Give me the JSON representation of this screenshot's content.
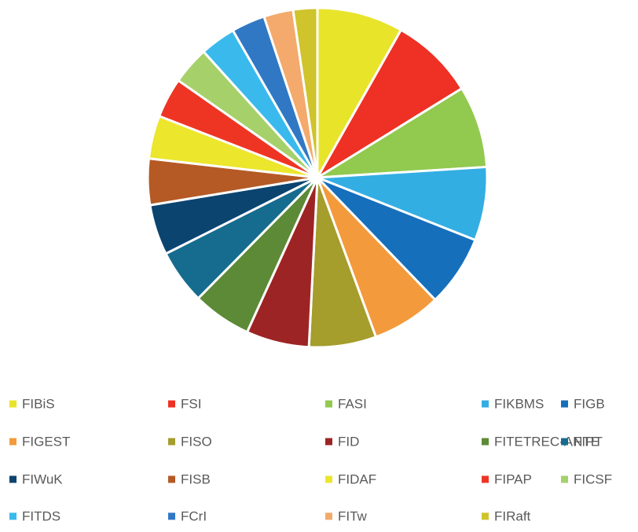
{
  "chart_data": {
    "type": "pie",
    "categories": [
      "FIBiS",
      "FSI",
      "FASI",
      "FIKBMS",
      "FIGB",
      "FIGEST",
      "FISO",
      "FID",
      "FITETREC-ANTE",
      "FIPT",
      "FIWuK",
      "FISB",
      "FIDAF",
      "FIPAP",
      "FICSF",
      "FITDS",
      "FCrI",
      "FITw",
      "FIRaft"
    ],
    "values": [
      8.2,
      8.0,
      7.8,
      7.0,
      6.8,
      6.6,
      6.4,
      6.0,
      5.6,
      5.2,
      4.8,
      4.4,
      4.1,
      3.8,
      3.6,
      3.4,
      3.2,
      2.8,
      2.3
    ],
    "colors": [
      "#e8e42a",
      "#ee3124",
      "#92c94f",
      "#33aee3",
      "#166fbb",
      "#f39a3c",
      "#a59d2c",
      "#9d2424",
      "#5c8a36",
      "#166c8e",
      "#0c4470",
      "#b55a25",
      "#ece62c",
      "#ee3524",
      "#a6d06a",
      "#3ab9ec",
      "#3078c4",
      "#f4aa6c",
      "#cfc42c"
    ],
    "legend": "bottom"
  }
}
